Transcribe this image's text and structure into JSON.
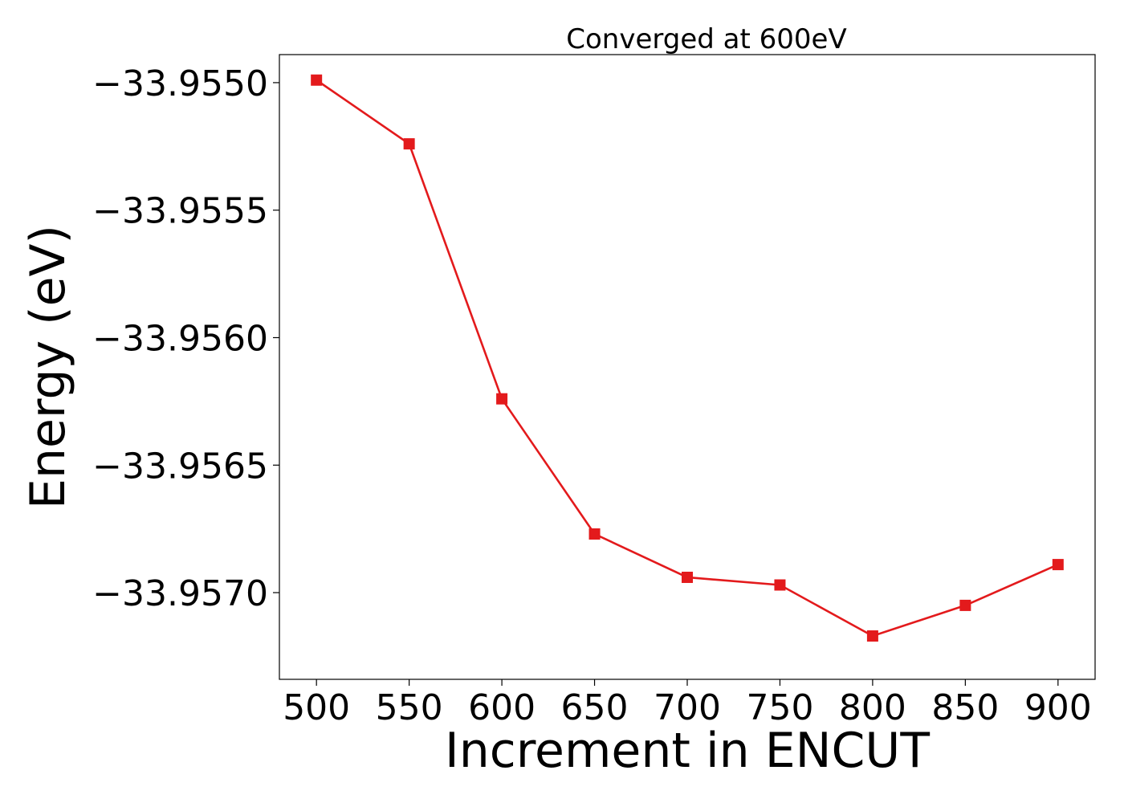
{
  "chart_data": {
    "type": "line",
    "title": "Converged at 600eV",
    "xlabel": "Increment in ENCUT",
    "ylabel": "Energy (eV)",
    "x": [
      500,
      550,
      600,
      650,
      700,
      750,
      800,
      850,
      900
    ],
    "x_ticks": [
      "500",
      "550",
      "600",
      "650",
      "700",
      "750",
      "800",
      "850",
      "900"
    ],
    "y_ticks": [
      -33.955,
      -33.9555,
      -33.956,
      -33.9565,
      -33.957
    ],
    "y_tick_labels": [
      "−33.9550",
      "−33.9555",
      "−33.9560",
      "−33.9565",
      "−33.9570"
    ],
    "xlim": [
      480,
      920
    ],
    "ylim": [
      -33.95734,
      -33.95489
    ],
    "grid": false,
    "series": [
      {
        "marker": "square",
        "color": "#e31a1c",
        "values": [
          -33.95499,
          -33.95524,
          -33.95624,
          -33.95677,
          -33.95694,
          -33.95697,
          -33.95717,
          -33.95705,
          -33.95689
        ]
      }
    ]
  }
}
